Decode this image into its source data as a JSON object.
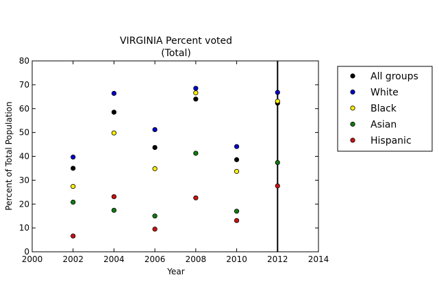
{
  "chart_data": {
    "type": "scatter",
    "title": "VIRGINIA Percent voted",
    "subtitle": "(Total)",
    "xlabel": "Year",
    "ylabel": "Percent of Total Population",
    "xlim": [
      2000,
      2014
    ],
    "ylim": [
      0,
      80
    ],
    "xticks": [
      "2000",
      "2002",
      "2004",
      "2006",
      "2008",
      "2010",
      "2012",
      "2014"
    ],
    "yticks": [
      "0",
      "10",
      "20",
      "30",
      "40",
      "50",
      "60",
      "70",
      "80"
    ],
    "grid": false,
    "legend_position": "outside-right",
    "vertical_line_x": 2012,
    "series": [
      {
        "name": "All groups",
        "color": "#000000",
        "x": [
          2002,
          2004,
          2006,
          2008,
          2010,
          2012
        ],
        "y": [
          35.0,
          58.5,
          43.7,
          64.0,
          38.6,
          62.3
        ]
      },
      {
        "name": "White",
        "color": "#0000cc",
        "x": [
          2002,
          2004,
          2006,
          2008,
          2010,
          2012
        ],
        "y": [
          39.7,
          66.4,
          51.2,
          68.5,
          44.1,
          66.8
        ]
      },
      {
        "name": "Black",
        "color": "#ffee00",
        "x": [
          2002,
          2004,
          2006,
          2008,
          2010,
          2012
        ],
        "y": [
          27.4,
          49.8,
          34.8,
          66.6,
          33.7,
          63.1
        ]
      },
      {
        "name": "Asian",
        "color": "#117a11",
        "x": [
          2002,
          2004,
          2006,
          2008,
          2010,
          2012
        ],
        "y": [
          20.8,
          17.4,
          15.0,
          41.3,
          17.0,
          37.4
        ]
      },
      {
        "name": "Hispanic",
        "color": "#cc1111",
        "x": [
          2002,
          2004,
          2006,
          2008,
          2010,
          2012
        ],
        "y": [
          6.6,
          23.1,
          9.5,
          22.6,
          13.1,
          27.6
        ]
      }
    ]
  }
}
